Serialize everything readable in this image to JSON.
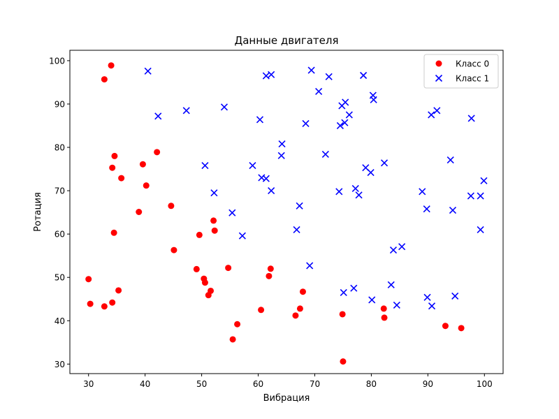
{
  "chart_data": {
    "type": "scatter",
    "title": "Данные двигателя",
    "xlabel": "Вибрация",
    "ylabel": "Ротация",
    "xlim": [
      26.7,
      103.3
    ],
    "ylim": [
      27.8,
      102.4
    ],
    "xticks": [
      30,
      40,
      50,
      60,
      70,
      80,
      90,
      100
    ],
    "yticks": [
      30,
      40,
      50,
      60,
      70,
      80,
      90,
      100
    ],
    "grid": false,
    "legend_position": "top-right",
    "series": [
      {
        "name": "Класс 0",
        "marker": "circle",
        "color": "#ff0000",
        "points": [
          [
            34.0,
            98.9
          ],
          [
            32.8,
            95.7
          ],
          [
            34.6,
            78.0
          ],
          [
            42.1,
            78.9
          ],
          [
            34.2,
            75.3
          ],
          [
            39.6,
            76.1
          ],
          [
            35.8,
            72.9
          ],
          [
            40.2,
            71.2
          ],
          [
            44.6,
            66.5
          ],
          [
            38.9,
            65.1
          ],
          [
            34.5,
            60.3
          ],
          [
            49.6,
            59.8
          ],
          [
            52.1,
            63.1
          ],
          [
            52.3,
            60.8
          ],
          [
            45.1,
            56.3
          ],
          [
            30.0,
            49.6
          ],
          [
            35.3,
            47.0
          ],
          [
            30.3,
            43.9
          ],
          [
            32.8,
            43.3
          ],
          [
            34.2,
            44.2
          ],
          [
            49.1,
            51.9
          ],
          [
            50.4,
            49.7
          ],
          [
            50.6,
            48.8
          ],
          [
            51.6,
            46.9
          ],
          [
            51.2,
            45.9
          ],
          [
            54.7,
            52.2
          ],
          [
            62.2,
            52.0
          ],
          [
            61.9,
            50.3
          ],
          [
            67.9,
            46.7
          ],
          [
            60.5,
            42.5
          ],
          [
            67.4,
            42.8
          ],
          [
            66.6,
            41.2
          ],
          [
            56.3,
            39.2
          ],
          [
            55.5,
            35.7
          ],
          [
            74.9,
            41.5
          ],
          [
            82.2,
            42.8
          ],
          [
            82.3,
            40.7
          ],
          [
            93.1,
            38.8
          ],
          [
            95.9,
            38.3
          ],
          [
            75.0,
            30.6
          ]
        ]
      },
      {
        "name": "Класс 1",
        "marker": "x",
        "color": "#0000ff",
        "points": [
          [
            40.5,
            97.6
          ],
          [
            61.4,
            96.5
          ],
          [
            62.3,
            96.8
          ],
          [
            69.4,
            97.8
          ],
          [
            72.5,
            96.3
          ],
          [
            78.6,
            96.6
          ],
          [
            70.7,
            92.9
          ],
          [
            80.3,
            92.0
          ],
          [
            80.4,
            91.0
          ],
          [
            75.4,
            90.4
          ],
          [
            74.8,
            89.6
          ],
          [
            42.3,
            87.2
          ],
          [
            47.3,
            88.5
          ],
          [
            54.0,
            89.3
          ],
          [
            60.3,
            86.4
          ],
          [
            76.1,
            87.5
          ],
          [
            74.5,
            85.0
          ],
          [
            75.3,
            85.7
          ],
          [
            68.4,
            85.5
          ],
          [
            90.6,
            87.5
          ],
          [
            91.6,
            88.5
          ],
          [
            97.7,
            86.7
          ],
          [
            64.2,
            80.8
          ],
          [
            64.1,
            78.1
          ],
          [
            71.9,
            78.4
          ],
          [
            59.0,
            75.8
          ],
          [
            50.6,
            75.8
          ],
          [
            60.6,
            73.0
          ],
          [
            61.4,
            72.8
          ],
          [
            79.0,
            75.3
          ],
          [
            79.9,
            74.2
          ],
          [
            82.3,
            76.4
          ],
          [
            94.0,
            77.1
          ],
          [
            99.9,
            72.3
          ],
          [
            52.2,
            69.5
          ],
          [
            62.3,
            70.0
          ],
          [
            74.3,
            69.8
          ],
          [
            77.2,
            70.5
          ],
          [
            77.8,
            69.0
          ],
          [
            89.0,
            69.8
          ],
          [
            97.6,
            68.8
          ],
          [
            99.3,
            68.8
          ],
          [
            55.4,
            64.9
          ],
          [
            57.2,
            59.6
          ],
          [
            67.3,
            66.5
          ],
          [
            66.8,
            61.0
          ],
          [
            89.8,
            65.8
          ],
          [
            94.4,
            65.5
          ],
          [
            99.3,
            61.0
          ],
          [
            83.9,
            56.3
          ],
          [
            85.4,
            57.1
          ],
          [
            69.1,
            52.7
          ],
          [
            83.5,
            48.3
          ],
          [
            75.1,
            46.5
          ],
          [
            76.9,
            47.5
          ],
          [
            80.1,
            44.8
          ],
          [
            84.5,
            43.6
          ],
          [
            89.9,
            45.4
          ],
          [
            90.7,
            43.4
          ],
          [
            94.8,
            45.7
          ]
        ]
      }
    ]
  }
}
